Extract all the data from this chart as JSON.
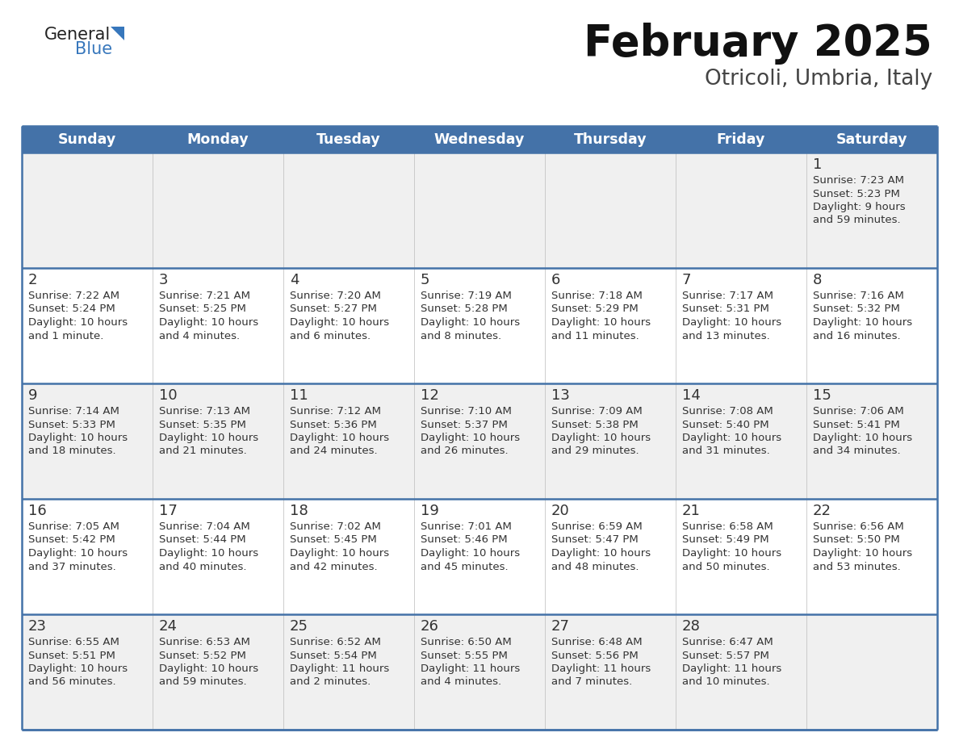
{
  "title": "February 2025",
  "subtitle": "Otricoli, Umbria, Italy",
  "days_of_week": [
    "Sunday",
    "Monday",
    "Tuesday",
    "Wednesday",
    "Thursday",
    "Friday",
    "Saturday"
  ],
  "header_bg": "#4472A8",
  "header_fg": "#FFFFFF",
  "row_bg_light": "#F0F0F0",
  "row_bg_white": "#FFFFFF",
  "border_color": "#4472A8",
  "text_color": "#333333",
  "logo_general_color": "#222222",
  "logo_blue_color": "#3777BC",
  "logo_triangle_color": "#3777BC",
  "title_color": "#111111",
  "subtitle_color": "#444444",
  "cal_data": [
    [
      null,
      null,
      null,
      null,
      null,
      null,
      {
        "day": "1",
        "sunrise": "7:23 AM",
        "sunset": "5:23 PM",
        "daylight_line1": "9 hours",
        "daylight_line2": "and 59 minutes."
      }
    ],
    [
      {
        "day": "2",
        "sunrise": "7:22 AM",
        "sunset": "5:24 PM",
        "daylight_line1": "10 hours",
        "daylight_line2": "and 1 minute."
      },
      {
        "day": "3",
        "sunrise": "7:21 AM",
        "sunset": "5:25 PM",
        "daylight_line1": "10 hours",
        "daylight_line2": "and 4 minutes."
      },
      {
        "day": "4",
        "sunrise": "7:20 AM",
        "sunset": "5:27 PM",
        "daylight_line1": "10 hours",
        "daylight_line2": "and 6 minutes."
      },
      {
        "day": "5",
        "sunrise": "7:19 AM",
        "sunset": "5:28 PM",
        "daylight_line1": "10 hours",
        "daylight_line2": "and 8 minutes."
      },
      {
        "day": "6",
        "sunrise": "7:18 AM",
        "sunset": "5:29 PM",
        "daylight_line1": "10 hours",
        "daylight_line2": "and 11 minutes."
      },
      {
        "day": "7",
        "sunrise": "7:17 AM",
        "sunset": "5:31 PM",
        "daylight_line1": "10 hours",
        "daylight_line2": "and 13 minutes."
      },
      {
        "day": "8",
        "sunrise": "7:16 AM",
        "sunset": "5:32 PM",
        "daylight_line1": "10 hours",
        "daylight_line2": "and 16 minutes."
      }
    ],
    [
      {
        "day": "9",
        "sunrise": "7:14 AM",
        "sunset": "5:33 PM",
        "daylight_line1": "10 hours",
        "daylight_line2": "and 18 minutes."
      },
      {
        "day": "10",
        "sunrise": "7:13 AM",
        "sunset": "5:35 PM",
        "daylight_line1": "10 hours",
        "daylight_line2": "and 21 minutes."
      },
      {
        "day": "11",
        "sunrise": "7:12 AM",
        "sunset": "5:36 PM",
        "daylight_line1": "10 hours",
        "daylight_line2": "and 24 minutes."
      },
      {
        "day": "12",
        "sunrise": "7:10 AM",
        "sunset": "5:37 PM",
        "daylight_line1": "10 hours",
        "daylight_line2": "and 26 minutes."
      },
      {
        "day": "13",
        "sunrise": "7:09 AM",
        "sunset": "5:38 PM",
        "daylight_line1": "10 hours",
        "daylight_line2": "and 29 minutes."
      },
      {
        "day": "14",
        "sunrise": "7:08 AM",
        "sunset": "5:40 PM",
        "daylight_line1": "10 hours",
        "daylight_line2": "and 31 minutes."
      },
      {
        "day": "15",
        "sunrise": "7:06 AM",
        "sunset": "5:41 PM",
        "daylight_line1": "10 hours",
        "daylight_line2": "and 34 minutes."
      }
    ],
    [
      {
        "day": "16",
        "sunrise": "7:05 AM",
        "sunset": "5:42 PM",
        "daylight_line1": "10 hours",
        "daylight_line2": "and 37 minutes."
      },
      {
        "day": "17",
        "sunrise": "7:04 AM",
        "sunset": "5:44 PM",
        "daylight_line1": "10 hours",
        "daylight_line2": "and 40 minutes."
      },
      {
        "day": "18",
        "sunrise": "7:02 AM",
        "sunset": "5:45 PM",
        "daylight_line1": "10 hours",
        "daylight_line2": "and 42 minutes."
      },
      {
        "day": "19",
        "sunrise": "7:01 AM",
        "sunset": "5:46 PM",
        "daylight_line1": "10 hours",
        "daylight_line2": "and 45 minutes."
      },
      {
        "day": "20",
        "sunrise": "6:59 AM",
        "sunset": "5:47 PM",
        "daylight_line1": "10 hours",
        "daylight_line2": "and 48 minutes."
      },
      {
        "day": "21",
        "sunrise": "6:58 AM",
        "sunset": "5:49 PM",
        "daylight_line1": "10 hours",
        "daylight_line2": "and 50 minutes."
      },
      {
        "day": "22",
        "sunrise": "6:56 AM",
        "sunset": "5:50 PM",
        "daylight_line1": "10 hours",
        "daylight_line2": "and 53 minutes."
      }
    ],
    [
      {
        "day": "23",
        "sunrise": "6:55 AM",
        "sunset": "5:51 PM",
        "daylight_line1": "10 hours",
        "daylight_line2": "and 56 minutes."
      },
      {
        "day": "24",
        "sunrise": "6:53 AM",
        "sunset": "5:52 PM",
        "daylight_line1": "10 hours",
        "daylight_line2": "and 59 minutes."
      },
      {
        "day": "25",
        "sunrise": "6:52 AM",
        "sunset": "5:54 PM",
        "daylight_line1": "11 hours",
        "daylight_line2": "and 2 minutes."
      },
      {
        "day": "26",
        "sunrise": "6:50 AM",
        "sunset": "5:55 PM",
        "daylight_line1": "11 hours",
        "daylight_line2": "and 4 minutes."
      },
      {
        "day": "27",
        "sunrise": "6:48 AM",
        "sunset": "5:56 PM",
        "daylight_line1": "11 hours",
        "daylight_line2": "and 7 minutes."
      },
      {
        "day": "28",
        "sunrise": "6:47 AM",
        "sunset": "5:57 PM",
        "daylight_line1": "11 hours",
        "daylight_line2": "and 10 minutes."
      },
      null
    ]
  ]
}
